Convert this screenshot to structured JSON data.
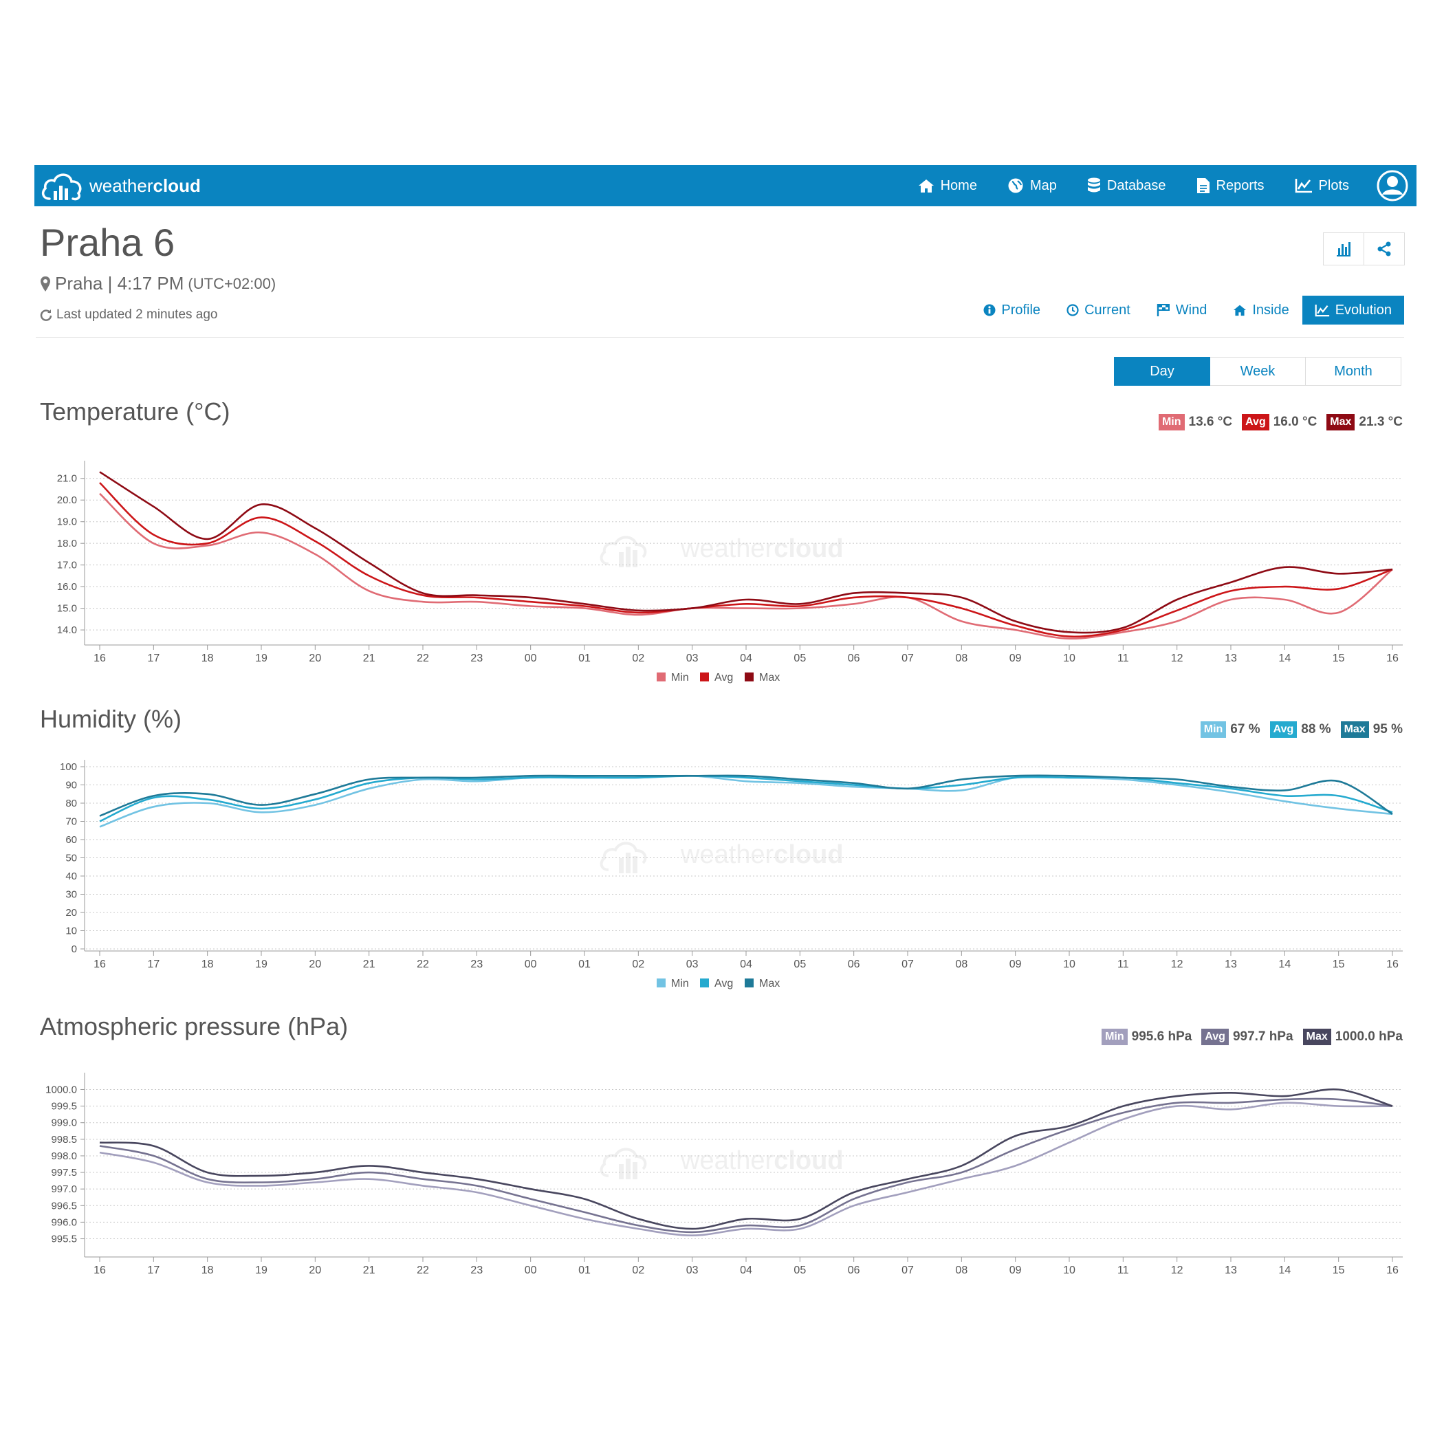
{
  "nav": {
    "brand_light": "weather",
    "brand_bold": "cloud",
    "items": [
      {
        "label": "Home",
        "icon": "home-icon"
      },
      {
        "label": "Map",
        "icon": "globe-icon"
      },
      {
        "label": "Database",
        "icon": "database-icon"
      },
      {
        "label": "Reports",
        "icon": "document-icon"
      },
      {
        "label": "Plots",
        "icon": "line-chart-icon"
      }
    ],
    "user_icon": "user-icon"
  },
  "station": {
    "title": "Praha 6",
    "location": "Praha | 4:17 PM",
    "timezone": "(UTC+02:00)",
    "updated": "Last updated 2 minutes ago"
  },
  "subnav": [
    {
      "label": "Profile",
      "icon": "info-icon",
      "active": false
    },
    {
      "label": "Current",
      "icon": "clock-icon",
      "active": false
    },
    {
      "label": "Wind",
      "icon": "flag-icon",
      "active": false
    },
    {
      "label": "Inside",
      "icon": "home-icon",
      "active": false
    },
    {
      "label": "Evolution",
      "icon": "line-chart-icon",
      "active": true
    }
  ],
  "periods": [
    {
      "label": "Day",
      "active": true
    },
    {
      "label": "Week",
      "active": false
    },
    {
      "label": "Month",
      "active": false
    }
  ],
  "watermark": {
    "light": "weather",
    "bold": "cloud"
  },
  "charts": [
    {
      "title": "Temperature (°C)",
      "stats": [
        {
          "label": "Min",
          "value": "13.6 °C",
          "color": "#e06b74"
        },
        {
          "label": "Avg",
          "value": "16.0 °C",
          "color": "#cc1518"
        },
        {
          "label": "Max",
          "value": "21.3 °C",
          "color": "#8e0a14"
        }
      ]
    },
    {
      "title": "Humidity (%)",
      "stats": [
        {
          "label": "Min",
          "value": "67 %",
          "color": "#72c3e3"
        },
        {
          "label": "Avg",
          "value": "88 %",
          "color": "#25aacf"
        },
        {
          "label": "Max",
          "value": "95 %",
          "color": "#1e7a98"
        }
      ]
    },
    {
      "title": "Atmospheric pressure (hPa)",
      "stats": [
        {
          "label": "Min",
          "value": "995.6 hPa",
          "color": "#a29fbd"
        },
        {
          "label": "Avg",
          "value": "997.7 hPa",
          "color": "#757290"
        },
        {
          "label": "Max",
          "value": "1000.0 hPa",
          "color": "#48465e"
        }
      ]
    }
  ],
  "chart_data": [
    {
      "type": "line",
      "title": "Temperature (°C)",
      "x": [
        "16",
        "17",
        "18",
        "19",
        "20",
        "21",
        "22",
        "23",
        "00",
        "01",
        "02",
        "03",
        "04",
        "05",
        "06",
        "07",
        "08",
        "09",
        "10",
        "11",
        "12",
        "13",
        "14",
        "15",
        "16"
      ],
      "yticks": [
        "14.0",
        "15.0",
        "16.0",
        "17.0",
        "18.0",
        "19.0",
        "20.0",
        "21.0"
      ],
      "ylim": [
        13.4,
        21.5
      ],
      "legend": "bottom-center",
      "series": [
        {
          "name": "Min",
          "color": "#e06b74",
          "values": [
            20.3,
            18.0,
            17.9,
            18.5,
            17.5,
            15.8,
            15.3,
            15.3,
            15.1,
            15.0,
            14.7,
            15.0,
            15.0,
            15.0,
            15.2,
            15.5,
            14.4,
            14.0,
            13.6,
            13.9,
            14.4,
            15.4,
            15.4,
            14.8,
            16.8
          ]
        },
        {
          "name": "Avg",
          "color": "#cc1518",
          "values": [
            20.8,
            18.4,
            18.0,
            19.2,
            18.1,
            16.5,
            15.6,
            15.5,
            15.3,
            15.1,
            14.8,
            15.0,
            15.2,
            15.1,
            15.5,
            15.5,
            15.0,
            14.2,
            13.7,
            14.0,
            14.9,
            15.8,
            16.0,
            15.9,
            16.8
          ]
        },
        {
          "name": "Max",
          "color": "#8e0a14",
          "values": [
            21.3,
            19.7,
            18.2,
            19.8,
            18.7,
            17.1,
            15.7,
            15.6,
            15.5,
            15.2,
            14.9,
            15.0,
            15.4,
            15.2,
            15.7,
            15.7,
            15.5,
            14.4,
            13.9,
            14.1,
            15.4,
            16.2,
            16.9,
            16.6,
            16.8
          ]
        }
      ]
    },
    {
      "type": "line",
      "title": "Humidity (%)",
      "x": [
        "16",
        "17",
        "18",
        "19",
        "20",
        "21",
        "22",
        "23",
        "00",
        "01",
        "02",
        "03",
        "04",
        "05",
        "06",
        "07",
        "08",
        "09",
        "10",
        "11",
        "12",
        "13",
        "14",
        "15",
        "16"
      ],
      "yticks": [
        "0",
        "10",
        "20",
        "30",
        "40",
        "50",
        "60",
        "70",
        "80",
        "90",
        "100"
      ],
      "ylim": [
        0,
        100
      ],
      "legend": "bottom-center",
      "series": [
        {
          "name": "Min",
          "color": "#72c3e3",
          "values": [
            67,
            78,
            80,
            75,
            79,
            88,
            93,
            92,
            94,
            94,
            94,
            95,
            92,
            91,
            89,
            88,
            87,
            94,
            94,
            93,
            90,
            86,
            81,
            77,
            74
          ]
        },
        {
          "name": "Avg",
          "color": "#25aacf",
          "values": [
            70,
            83,
            82,
            77,
            82,
            91,
            94,
            93,
            94,
            94,
            94,
            95,
            94,
            92,
            90,
            88,
            90,
            94,
            94,
            94,
            91,
            88,
            84,
            84,
            75
          ]
        },
        {
          "name": "Max",
          "color": "#1e7a98",
          "values": [
            73,
            84,
            85,
            79,
            85,
            93,
            94,
            94,
            95,
            95,
            95,
            95,
            95,
            93,
            91,
            88,
            93,
            95,
            95,
            94,
            93,
            89,
            87,
            92,
            74
          ]
        }
      ]
    },
    {
      "type": "line",
      "title": "Atmospheric pressure (hPa)",
      "x": [
        "16",
        "17",
        "18",
        "19",
        "20",
        "21",
        "22",
        "23",
        "00",
        "01",
        "02",
        "03",
        "04",
        "05",
        "06",
        "07",
        "08",
        "09",
        "10",
        "11",
        "12",
        "13",
        "14",
        "15",
        "16"
      ],
      "yticks": [
        "995.5",
        "996.0",
        "996.5",
        "997.0",
        "997.5",
        "998.0",
        "998.5",
        "999.0",
        "999.5",
        "1000.0"
      ],
      "ylim": [
        995.2,
        1000.3
      ],
      "legend": "none",
      "series": [
        {
          "name": "Min",
          "color": "#a29fbd",
          "values": [
            998.1,
            997.8,
            997.2,
            997.1,
            997.2,
            997.3,
            997.1,
            996.9,
            996.5,
            996.1,
            995.8,
            995.6,
            995.8,
            995.8,
            996.5,
            996.9,
            997.3,
            997.7,
            998.4,
            999.1,
            999.5,
            999.4,
            999.6,
            999.5,
            999.5
          ]
        },
        {
          "name": "Avg",
          "color": "#757290",
          "values": [
            998.3,
            998.0,
            997.3,
            997.2,
            997.3,
            997.5,
            997.3,
            997.1,
            996.7,
            996.3,
            995.9,
            995.7,
            995.9,
            995.9,
            996.7,
            997.2,
            997.5,
            998.2,
            998.8,
            999.3,
            999.6,
            999.6,
            999.7,
            999.7,
            999.5
          ]
        },
        {
          "name": "Max",
          "color": "#48465e",
          "values": [
            998.4,
            998.3,
            997.5,
            997.4,
            997.5,
            997.7,
            997.5,
            997.3,
            997.0,
            996.7,
            996.1,
            995.8,
            996.1,
            996.1,
            996.9,
            997.3,
            997.7,
            998.6,
            998.9,
            999.5,
            999.8,
            999.9,
            999.8,
            1000.0,
            999.5
          ]
        }
      ]
    }
  ]
}
